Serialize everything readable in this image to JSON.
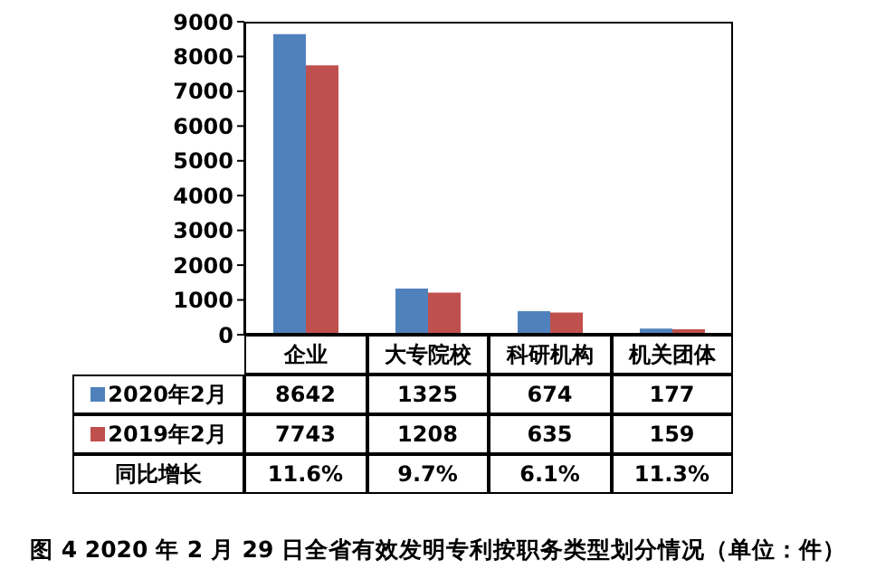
{
  "chart_data": {
    "type": "bar",
    "title": "图 4 2020 年 2 月 29 日全省有效发明专利按职务类型划分情况（单位：件）",
    "categories": [
      "企业",
      "大专院校",
      "科研机构",
      "机关团体"
    ],
    "series": [
      {
        "name": "2020年2月",
        "color": "#4f81bd",
        "values": [
          8642,
          1325,
          674,
          177
        ]
      },
      {
        "name": "2019年2月",
        "color": "#c0504d",
        "values": [
          7743,
          1208,
          635,
          159
        ]
      }
    ],
    "ylim": [
      0,
      9000
    ],
    "yticks": [
      0,
      1000,
      2000,
      3000,
      4000,
      5000,
      6000,
      7000,
      8000,
      9000
    ],
    "data_labels": true,
    "legend": "bottom",
    "annotations": [
      "同比增长",
      "11.6%",
      "9.7%",
      "6.1%",
      "11.3%"
    ]
  }
}
